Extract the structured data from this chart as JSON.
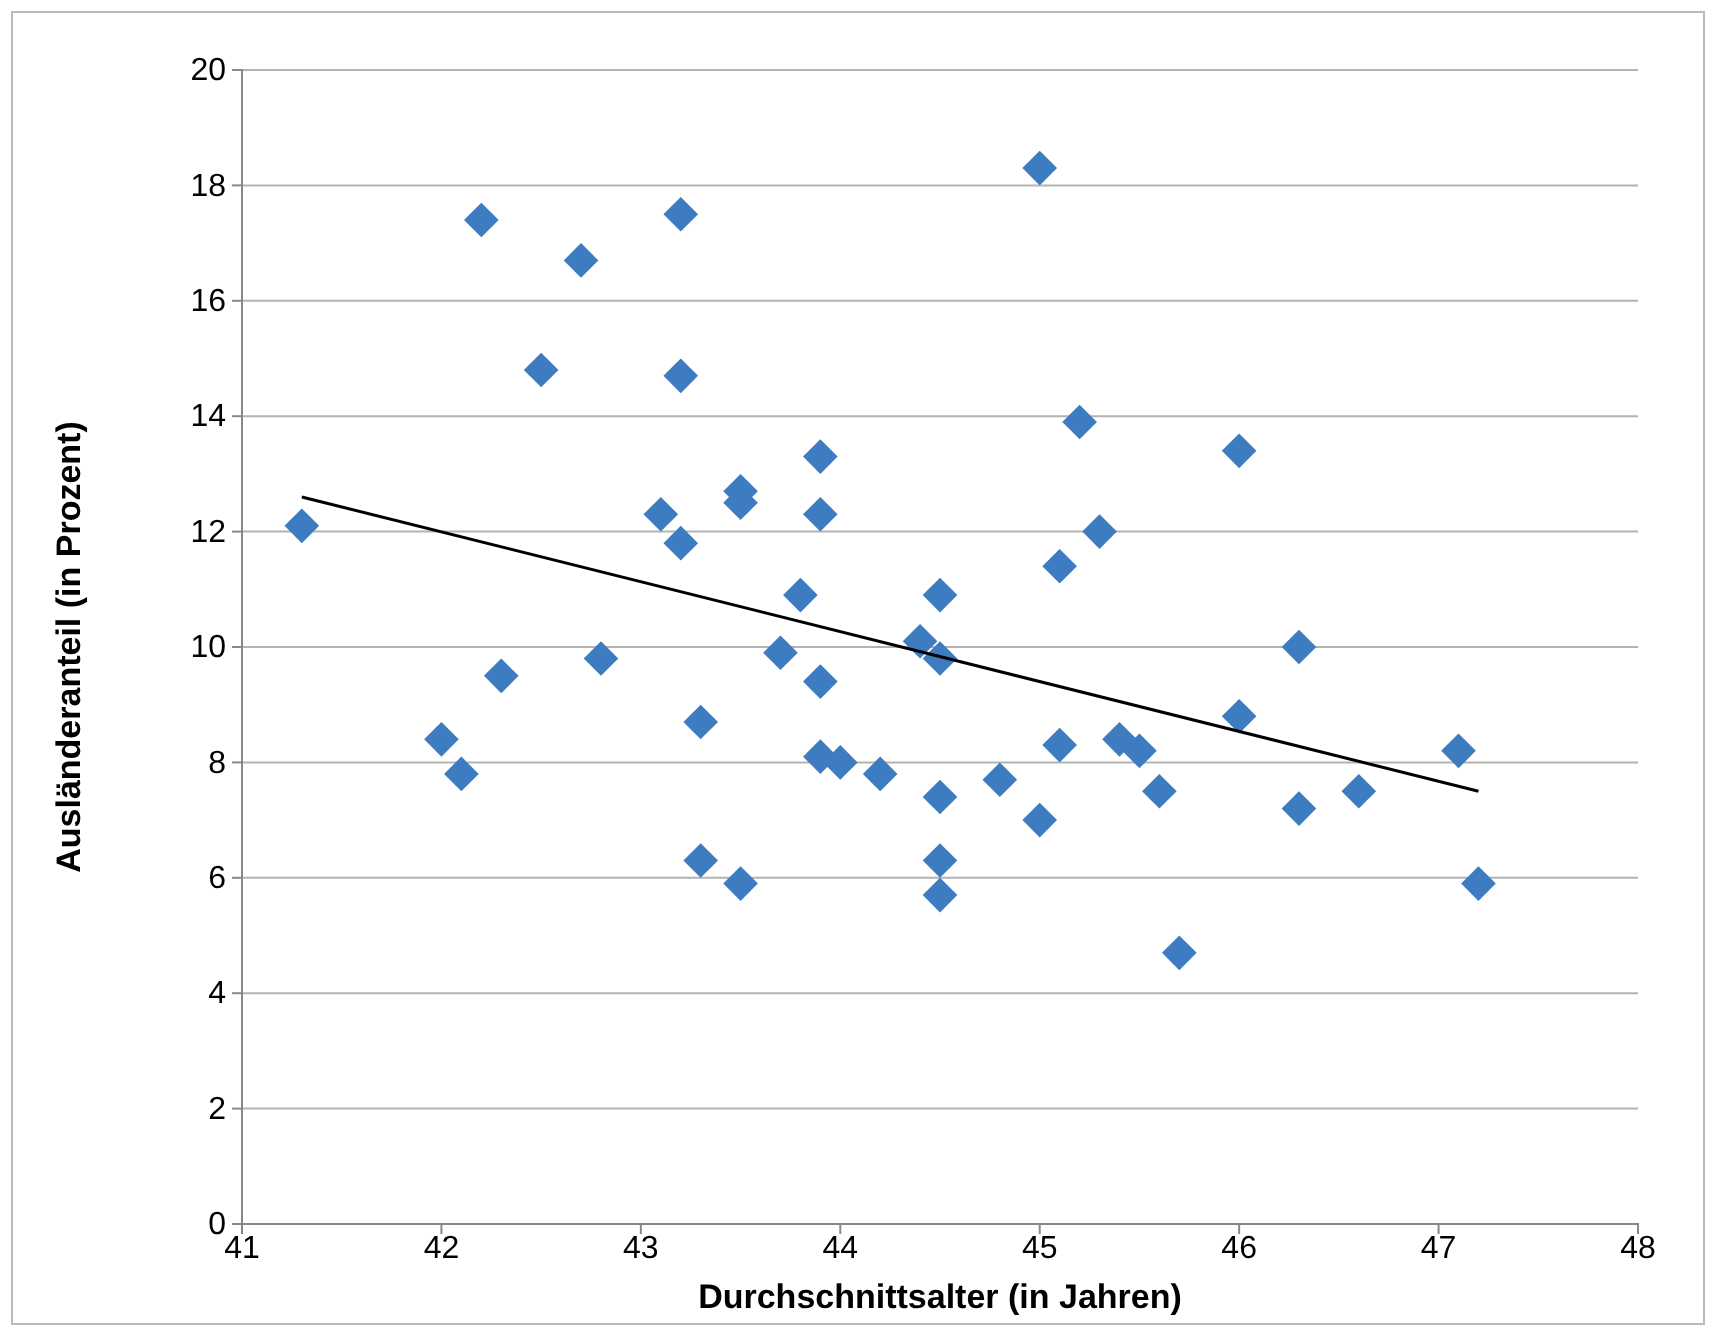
{
  "chart_data": {
    "type": "scatter",
    "xlabel": "Durchschnittsalter (in Jahren)",
    "ylabel": "Ausländeranteil (in Prozent)",
    "xlim": [
      41,
      48
    ],
    "xticks": [
      41,
      42,
      43,
      44,
      45,
      46,
      47,
      48
    ],
    "ylim": [
      0,
      20
    ],
    "yticks": [
      0,
      2,
      4,
      6,
      8,
      10,
      12,
      14,
      16,
      18,
      20
    ],
    "grid": "y",
    "marker": "diamond",
    "series": [
      {
        "type": "scatter",
        "color": "#3d7cc0",
        "x": [
          41.3,
          42.0,
          42.1,
          42.2,
          42.3,
          42.5,
          42.7,
          42.8,
          43.1,
          43.2,
          43.2,
          43.2,
          43.3,
          43.3,
          43.5,
          43.5,
          43.5,
          43.7,
          43.8,
          43.9,
          43.9,
          43.9,
          43.9,
          44.0,
          44.2,
          44.4,
          44.5,
          44.5,
          44.5,
          44.5,
          44.5,
          44.8,
          45.0,
          45.0,
          45.1,
          45.1,
          45.2,
          45.3,
          45.4,
          45.5,
          45.6,
          45.7,
          46.0,
          46.0,
          46.3,
          46.3,
          46.6,
          47.1,
          47.2
        ],
        "values": [
          12.1,
          8.4,
          7.8,
          17.4,
          9.5,
          14.8,
          16.7,
          9.8,
          12.3,
          11.8,
          14.7,
          17.5,
          8.7,
          6.3,
          12.7,
          12.5,
          5.9,
          9.9,
          10.9,
          13.3,
          12.3,
          9.4,
          8.1,
          8.0,
          7.8,
          10.1,
          9.8,
          10.9,
          7.4,
          6.3,
          5.7,
          7.7,
          18.3,
          7.0,
          11.4,
          8.3,
          13.9,
          12.0,
          8.4,
          8.2,
          7.5,
          4.7,
          13.4,
          8.8,
          10.0,
          7.2,
          7.5,
          8.2,
          5.9
        ]
      },
      {
        "type": "line",
        "color": "#000000",
        "marker": "none",
        "x": [
          41.3,
          47.2
        ],
        "values": [
          12.6,
          7.5
        ]
      }
    ]
  }
}
